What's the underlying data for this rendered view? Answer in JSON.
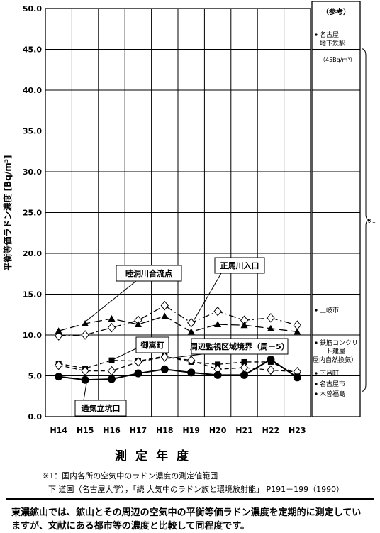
{
  "chart_data": {
    "type": "line",
    "title": "",
    "ylabel": "平衡等価ラドン濃度 [Bq/m³]",
    "xlabel": "測定年度",
    "ylim": [
      0,
      50
    ],
    "ytick_labels": [
      "0.0",
      "5.0",
      "10.0",
      "15.0",
      "20.0",
      "25.0",
      "30.0",
      "35.0",
      "40.0",
      "45.0",
      "50.0"
    ],
    "grid": true,
    "categories": [
      "H14",
      "H15",
      "H16",
      "H17",
      "H18",
      "H19",
      "H20",
      "H21",
      "H22",
      "H23"
    ],
    "series": [
      {
        "name": "正馬川入口",
        "marker": "open-diamond",
        "dash": "dash-dot",
        "values": [
          9.9,
          10.0,
          10.9,
          11.8,
          13.6,
          11.5,
          12.9,
          11.8,
          12.1,
          11.2
        ]
      },
      {
        "name": "睦洞川合流点",
        "marker": "filled-triangle",
        "dash": "long-dash",
        "values": [
          10.5,
          11.4,
          12.0,
          11.3,
          12.3,
          10.4,
          11.3,
          11.2,
          10.8,
          10.4
        ]
      },
      {
        "name": "御嵩町",
        "marker": "filled-square",
        "dash": "dash",
        "values": [
          6.5,
          5.9,
          6.9,
          6.8,
          7.4,
          6.7,
          6.4,
          6.7,
          6.7,
          5.2
        ]
      },
      {
        "name": "周辺監視区域境界（周－5）",
        "marker": "open-diamond",
        "dash": "dash",
        "values": [
          6.3,
          5.6,
          5.6,
          6.7,
          7.3,
          6.9,
          5.8,
          6.0,
          5.7,
          5.5
        ]
      },
      {
        "name": "通気立坑口",
        "marker": "filled-circle",
        "dash": "solid",
        "values": [
          4.9,
          4.5,
          4.6,
          5.3,
          5.8,
          5.4,
          5.1,
          5.1,
          7.0,
          4.8
        ]
      }
    ],
    "annotations": [
      {
        "text": "睦洞川合流点",
        "series": 1
      },
      {
        "text": "正馬川入口",
        "series": 0
      },
      {
        "text": "御嵩町",
        "series": 2
      },
      {
        "text": "周辺監視区域境界（周－5）",
        "series": 3
      },
      {
        "text": "通気立坑口",
        "series": 4
      }
    ]
  },
  "reference_panel": {
    "title": "（参考）",
    "items": [
      {
        "label": "名古屋\n地下鉄駅",
        "value": 44.2
      },
      {
        "label": "土岐市",
        "value": 12.7
      },
      {
        "label": "鉄筋コンクリ\nート建屋",
        "value": 8.6
      },
      {
        "label": "屋内自然換気）",
        "value": 6.5
      },
      {
        "label": "下呂町",
        "value": 5.1
      },
      {
        "label": "名古屋市",
        "value": 4.1
      },
      {
        "label": "木曽福島",
        "value": 3.1
      }
    ],
    "sub_note": "（45Bq/m³）",
    "brace_mark": "※1"
  },
  "footnote": {
    "line1": "※1：国内各所の空気中のラドン濃度の測定値範囲",
    "line2": "下 道国（名古屋大学），「続 大気中のラドン族と環境放射能」 P191－199（1990）"
  },
  "summary": "東濃鉱山では、鉱山とその周辺の空気中の平衡等価ラドン濃度を定期的に測定していますが、文献にある都市等の濃度と比較して同程度です。"
}
